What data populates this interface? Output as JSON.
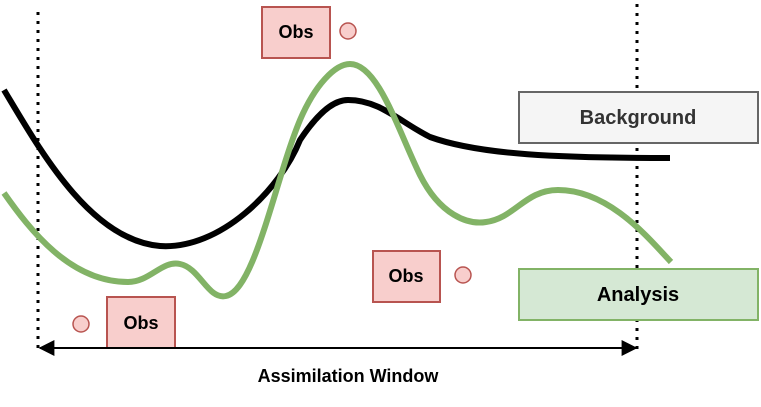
{
  "labels": {
    "obs": "Obs",
    "background": "Background",
    "analysis": "Analysis",
    "window": "Assimilation Window"
  },
  "colors": {
    "background_curve": "#000000",
    "analysis_curve": "#82b366",
    "obs_fill": "#f8cecc",
    "obs_stroke": "#b85450",
    "background_box_fill": "#f5f5f5",
    "background_box_stroke": "#666666",
    "background_box_text": "#333333",
    "analysis_box_fill": "#d5e8d4",
    "analysis_box_stroke": "#82b366"
  }
}
